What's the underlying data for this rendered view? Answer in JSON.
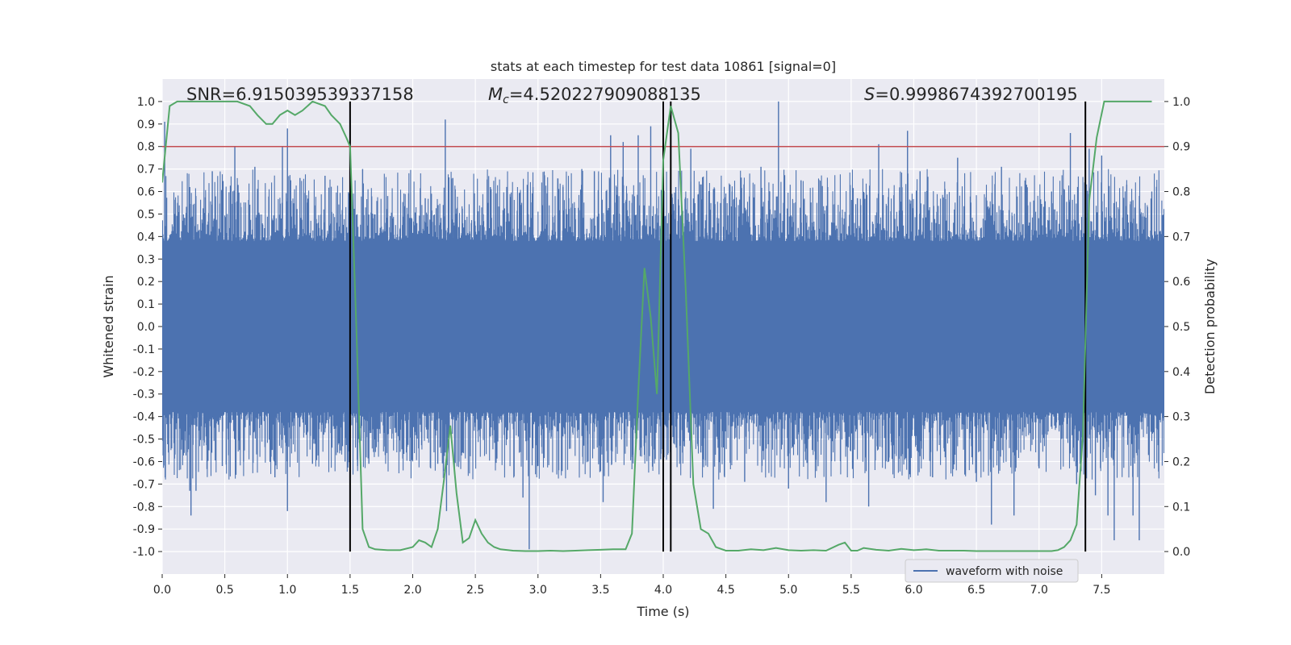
{
  "chart_data": {
    "type": "line",
    "title": "stats at each timestep for test data 10861 [signal=0]",
    "xlabel": "Time (s)",
    "ylabel": "Whitened strain",
    "ylabel_right": "Detection probability",
    "xlim": [
      0.0,
      8.0
    ],
    "ylim": [
      -1.1,
      1.1
    ],
    "ylim_right": [
      -0.05,
      1.05
    ],
    "xticks": [
      "0.0",
      "0.5",
      "1.0",
      "1.5",
      "2.0",
      "2.5",
      "3.0",
      "3.5",
      "4.0",
      "4.5",
      "5.0",
      "5.5",
      "6.0",
      "6.5",
      "7.0",
      "7.5"
    ],
    "yticks": [
      "1.0",
      "0.9",
      "0.8",
      "0.7",
      "0.6",
      "0.5",
      "0.4",
      "0.3",
      "0.2",
      "0.1",
      "0.0",
      "-0.1",
      "-0.2",
      "-0.3",
      "-0.4",
      "-0.5",
      "-0.6",
      "-0.7",
      "-0.8",
      "-0.9",
      "-1.0"
    ],
    "yticks_right": [
      "1.0",
      "0.9",
      "0.8",
      "0.7",
      "0.6",
      "0.5",
      "0.4",
      "0.3",
      "0.2",
      "0.1",
      "0.0"
    ],
    "grid": true,
    "legend": {
      "placement": "bottom-right",
      "entries": [
        "waveform with noise"
      ]
    },
    "annotations": {
      "snr": "SNR=6.915039539337158",
      "mc_prefix": "M",
      "mc_sub": "c",
      "mc_value": "=4.520227909088135",
      "s_prefix": "S",
      "s_value": "=0.9998674392700195"
    },
    "threshold_right": 0.9,
    "vlines_x": [
      1.5,
      4.0,
      4.06,
      7.37
    ],
    "vlines_yrange": [
      -1.0,
      1.0
    ],
    "series": [
      {
        "name": "waveform with noise",
        "color": "#4c72b0",
        "style": "noise",
        "envelope_core": 0.33,
        "spikes": [
          [
            0.02,
            0.91
          ],
          [
            0.05,
            -0.56
          ],
          [
            0.22,
            0.62
          ],
          [
            0.22,
            -0.73
          ],
          [
            0.23,
            -0.84
          ],
          [
            0.27,
            -0.73
          ],
          [
            0.4,
            0.69
          ],
          [
            0.48,
            -0.62
          ],
          [
            0.58,
            0.8
          ],
          [
            0.65,
            -0.6
          ],
          [
            0.74,
            0.71
          ],
          [
            0.9,
            -0.67
          ],
          [
            0.96,
            0.8
          ],
          [
            1.0,
            0.88
          ],
          [
            1.0,
            -0.82
          ],
          [
            1.1,
            0.66
          ],
          [
            1.2,
            -0.61
          ],
          [
            1.3,
            0.67
          ],
          [
            1.46,
            -0.6
          ],
          [
            1.5,
            0.93
          ],
          [
            1.56,
            -0.62
          ],
          [
            1.6,
            0.7
          ],
          [
            1.65,
            -0.61
          ],
          [
            1.8,
            0.58
          ],
          [
            1.95,
            -0.56
          ],
          [
            2.1,
            0.57
          ],
          [
            2.2,
            -0.61
          ],
          [
            2.26,
            0.92
          ],
          [
            2.27,
            -0.82
          ],
          [
            2.32,
            0.66
          ],
          [
            2.4,
            -0.56
          ],
          [
            2.62,
            0.62
          ],
          [
            2.78,
            0.56
          ],
          [
            2.88,
            -0.76
          ],
          [
            2.93,
            -0.99
          ],
          [
            2.96,
            0.62
          ],
          [
            3.2,
            0.62
          ],
          [
            3.35,
            0.7
          ],
          [
            3.4,
            -0.6
          ],
          [
            3.45,
            0.69
          ],
          [
            3.52,
            -0.78
          ],
          [
            3.58,
            0.85
          ],
          [
            3.68,
            0.82
          ],
          [
            3.75,
            -0.58
          ],
          [
            3.8,
            0.85
          ],
          [
            3.85,
            -0.57
          ],
          [
            3.9,
            0.89
          ],
          [
            3.98,
            -0.59
          ],
          [
            4.1,
            0.62
          ],
          [
            4.22,
            0.79
          ],
          [
            4.3,
            -0.56
          ],
          [
            4.4,
            -0.81
          ],
          [
            4.55,
            0.6
          ],
          [
            4.65,
            -0.69
          ],
          [
            4.78,
            0.71
          ],
          [
            4.92,
            1.0
          ],
          [
            5.0,
            -0.72
          ],
          [
            5.1,
            0.65
          ],
          [
            5.3,
            -0.78
          ],
          [
            5.55,
            0.57
          ],
          [
            5.64,
            -0.8
          ],
          [
            5.72,
            0.81
          ],
          [
            5.8,
            -0.6
          ],
          [
            5.95,
            0.87
          ],
          [
            6.05,
            0.69
          ],
          [
            6.15,
            -0.67
          ],
          [
            6.35,
            0.75
          ],
          [
            6.5,
            -0.69
          ],
          [
            6.62,
            -0.88
          ],
          [
            6.7,
            0.71
          ],
          [
            6.8,
            -0.84
          ],
          [
            6.9,
            0.63
          ],
          [
            7.0,
            -0.63
          ],
          [
            7.1,
            0.6
          ],
          [
            7.25,
            0.86
          ],
          [
            7.3,
            -0.7
          ],
          [
            7.4,
            0.79
          ],
          [
            7.45,
            -0.75
          ],
          [
            7.5,
            0.76
          ],
          [
            7.55,
            -0.84
          ],
          [
            7.6,
            -0.95
          ],
          [
            7.7,
            0.63
          ],
          [
            7.75,
            -0.84
          ],
          [
            7.8,
            -0.95
          ],
          [
            7.9,
            0.6
          ]
        ]
      },
      {
        "name": "",
        "color": "#55a868",
        "axis": "right",
        "x": [
          0.0,
          0.06,
          0.12,
          0.2,
          0.4,
          0.6,
          0.7,
          0.76,
          0.83,
          0.88,
          0.94,
          1.0,
          1.06,
          1.12,
          1.2,
          1.3,
          1.35,
          1.42,
          1.47,
          1.5,
          1.55,
          1.6,
          1.65,
          1.7,
          1.8,
          1.9,
          2.0,
          2.05,
          2.1,
          2.15,
          2.2,
          2.25,
          2.3,
          2.35,
          2.4,
          2.45,
          2.5,
          2.55,
          2.6,
          2.65,
          2.7,
          2.8,
          2.9,
          3.0,
          3.1,
          3.2,
          3.3,
          3.4,
          3.5,
          3.6,
          3.7,
          3.75,
          3.8,
          3.85,
          3.9,
          3.95,
          4.0,
          4.06,
          4.12,
          4.18,
          4.24,
          4.3,
          4.36,
          4.42,
          4.5,
          4.6,
          4.7,
          4.8,
          4.9,
          5.0,
          5.1,
          5.2,
          5.3,
          5.4,
          5.45,
          5.5,
          5.55,
          5.6,
          5.7,
          5.8,
          5.9,
          6.0,
          6.1,
          6.2,
          6.3,
          6.4,
          6.5,
          6.6,
          6.7,
          6.8,
          6.9,
          7.0,
          7.1,
          7.15,
          7.2,
          7.25,
          7.3,
          7.35,
          7.4,
          7.46,
          7.52,
          7.6,
          7.7,
          7.8,
          7.9
        ],
        "values": [
          0.82,
          0.99,
          1.0,
          1.0,
          1.0,
          1.0,
          0.99,
          0.97,
          0.95,
          0.95,
          0.97,
          0.98,
          0.97,
          0.98,
          1.0,
          0.99,
          0.97,
          0.95,
          0.92,
          0.9,
          0.5,
          0.05,
          0.01,
          0.005,
          0.003,
          0.003,
          0.01,
          0.025,
          0.02,
          0.01,
          0.05,
          0.16,
          0.28,
          0.13,
          0.02,
          0.03,
          0.07,
          0.04,
          0.02,
          0.01,
          0.005,
          0.002,
          0.001,
          0.001,
          0.002,
          0.001,
          0.002,
          0.003,
          0.004,
          0.005,
          0.005,
          0.04,
          0.35,
          0.63,
          0.52,
          0.35,
          0.87,
          0.99,
          0.93,
          0.58,
          0.15,
          0.05,
          0.04,
          0.01,
          0.002,
          0.002,
          0.005,
          0.003,
          0.008,
          0.003,
          0.002,
          0.003,
          0.002,
          0.015,
          0.02,
          0.002,
          0.002,
          0.008,
          0.004,
          0.002,
          0.006,
          0.003,
          0.005,
          0.002,
          0.002,
          0.002,
          0.001,
          0.001,
          0.001,
          0.001,
          0.001,
          0.001,
          0.001,
          0.003,
          0.01,
          0.025,
          0.06,
          0.26,
          0.78,
          0.92,
          1.0,
          1.0,
          1.0,
          1.0,
          1.0
        ]
      }
    ]
  }
}
